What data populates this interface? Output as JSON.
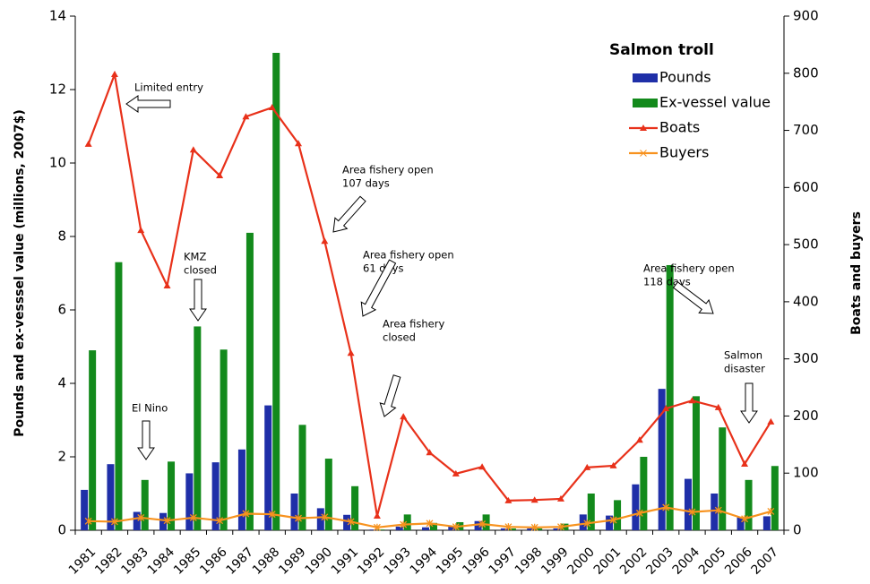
{
  "chart_data": {
    "type": "bar",
    "categories": [
      "1981",
      "1982",
      "1983",
      "1984",
      "1985",
      "1986",
      "1987",
      "1988",
      "1989",
      "1990",
      "1991",
      "1992",
      "1993",
      "1994",
      "1995",
      "1996",
      "1997",
      "1998",
      "1999",
      "2000",
      "2001",
      "2002",
      "2003",
      "2004",
      "2005",
      "2006",
      "2007"
    ],
    "series": [
      {
        "name": "Pounds",
        "type": "bar",
        "color": "#1f2fa8",
        "values": [
          1.1,
          1.8,
          0.5,
          0.47,
          1.55,
          1.85,
          2.2,
          3.4,
          1.0,
          0.6,
          0.42,
          0.02,
          0.1,
          0.08,
          0.1,
          0.25,
          0.05,
          0.05,
          0.05,
          0.43,
          0.4,
          1.25,
          3.85,
          1.4,
          1.0,
          0.35,
          0.38
        ]
      },
      {
        "name": "Ex-vessel value",
        "type": "bar",
        "color": "#138a1c",
        "values": [
          4.9,
          7.3,
          1.37,
          1.87,
          5.55,
          4.92,
          8.1,
          13.0,
          2.87,
          1.95,
          1.2,
          0.02,
          0.43,
          0.2,
          0.22,
          0.43,
          0.05,
          0.05,
          0.18,
          1.0,
          0.82,
          2.0,
          7.22,
          3.65,
          2.8,
          1.37,
          1.75
        ]
      },
      {
        "name": "Boats",
        "type": "line",
        "axis": "y2",
        "color": "#e8311a",
        "values": [
          676,
          798,
          525,
          428,
          666,
          621,
          724,
          740,
          677,
          506,
          310,
          25,
          199,
          136,
          99,
          111,
          52,
          53,
          55,
          110,
          113,
          158,
          213,
          227,
          215,
          116,
          190
        ]
      },
      {
        "name": "Buyers",
        "type": "line",
        "axis": "y2",
        "color": "#f7921e",
        "values": [
          16,
          15,
          22,
          17,
          22,
          17,
          29,
          28,
          21,
          23,
          15,
          5,
          10,
          12,
          6,
          11,
          6,
          5,
          6,
          12,
          18,
          30,
          40,
          32,
          35,
          20,
          33
        ]
      }
    ],
    "legend_title": "Salmon troll",
    "ylabel": "Pounds and ex-vesssel value (millions, 2007$)",
    "y2label": "Boats and buyers",
    "ylim": [
      0,
      14
    ],
    "yticks": [
      0,
      2,
      4,
      6,
      8,
      10,
      12,
      14
    ],
    "y2lim": [
      0,
      900
    ],
    "y2ticks": [
      0,
      100,
      200,
      300,
      400,
      500,
      600,
      700,
      800,
      900
    ],
    "grid": false,
    "annotations": [
      [
        "Limited entry"
      ],
      [
        "KMZ",
        "closed"
      ],
      [
        "El Nino"
      ],
      [
        "Area fishery open",
        "107 days"
      ],
      [
        "Area fishery open",
        "61 days"
      ],
      [
        "Area fishery",
        "closed"
      ],
      [
        "Area fishery open",
        "118 days"
      ],
      [
        "Salmon",
        "disaster"
      ]
    ]
  }
}
